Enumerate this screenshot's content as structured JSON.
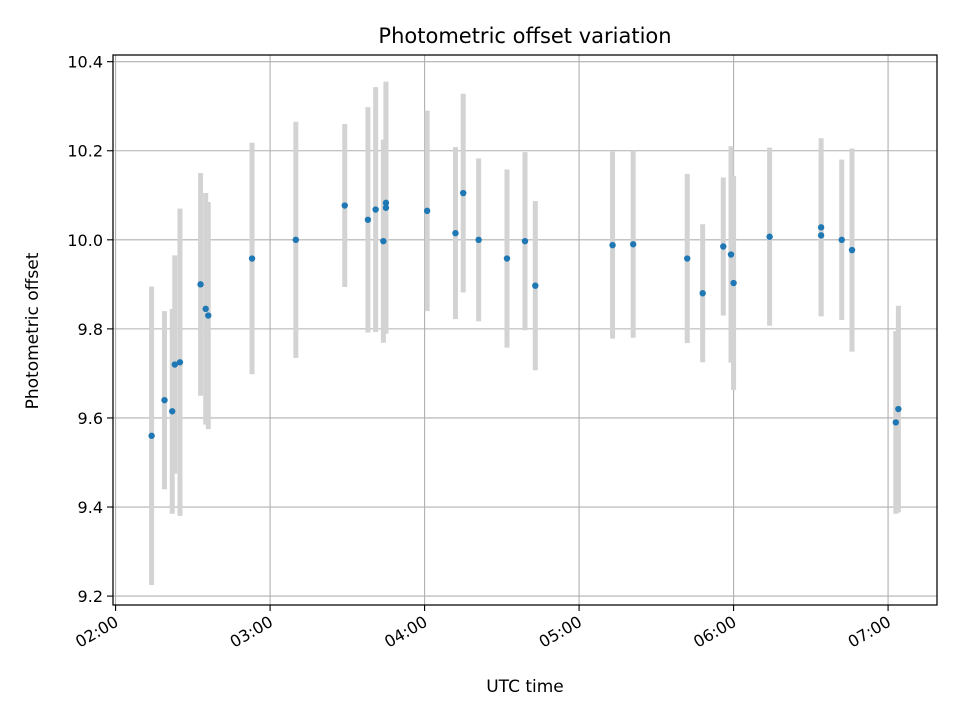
{
  "chart_data": {
    "type": "scatter",
    "title": "Photometric offset variation",
    "xlabel": "UTC time",
    "ylabel": "Photometric offset",
    "xlim": [
      "01:59",
      "07:19"
    ],
    "ylim": [
      9.18,
      10.415
    ],
    "x_ticks": [
      "02:00",
      "03:00",
      "04:00",
      "05:00",
      "06:00",
      "07:00"
    ],
    "y_ticks": [
      9.2,
      9.4,
      9.6,
      9.8,
      10.0,
      10.2,
      10.4
    ],
    "grid": true,
    "colors": {
      "point": "#1f77b4",
      "errorbar": "#d3d3d3",
      "grid": "#b0b0b0"
    },
    "points": [
      {
        "x": "02:14",
        "y": 9.56,
        "err": 0.335
      },
      {
        "x": "02:19",
        "y": 9.64,
        "err": 0.2
      },
      {
        "x": "02:22",
        "y": 9.615,
        "err": 0.23
      },
      {
        "x": "02:23",
        "y": 9.72,
        "err": 0.245
      },
      {
        "x": "02:25",
        "y": 9.725,
        "err": 0.345
      },
      {
        "x": "02:33",
        "y": 9.9,
        "err": 0.25
      },
      {
        "x": "02:35",
        "y": 9.845,
        "err": 0.26
      },
      {
        "x": "02:36",
        "y": 9.83,
        "err": 0.255
      },
      {
        "x": "02:53",
        "y": 9.958,
        "err": 0.26
      },
      {
        "x": "03:10",
        "y": 10.0,
        "err": 0.265
      },
      {
        "x": "03:29",
        "y": 10.077,
        "err": 0.183
      },
      {
        "x": "03:38",
        "y": 10.045,
        "err": 0.253
      },
      {
        "x": "03:41",
        "y": 10.068,
        "err": 0.275
      },
      {
        "x": "03:44",
        "y": 9.997,
        "err": 0.228
      },
      {
        "x": "03:45",
        "y": 10.083,
        "err": 0.272
      },
      {
        "x": "03:45",
        "y": 10.072,
        "err": 0.283
      },
      {
        "x": "04:01",
        "y": 10.065,
        "err": 0.225
      },
      {
        "x": "04:12",
        "y": 10.015,
        "err": 0.193
      },
      {
        "x": "04:15",
        "y": 10.105,
        "err": 0.223
      },
      {
        "x": "04:21",
        "y": 10.0,
        "err": 0.183
      },
      {
        "x": "04:32",
        "y": 9.958,
        "err": 0.2
      },
      {
        "x": "04:39",
        "y": 9.997,
        "err": 0.2
      },
      {
        "x": "04:43",
        "y": 9.897,
        "err": 0.19
      },
      {
        "x": "05:13",
        "y": 9.988,
        "err": 0.21
      },
      {
        "x": "05:21",
        "y": 9.99,
        "err": 0.21
      },
      {
        "x": "05:42",
        "y": 9.958,
        "err": 0.19
      },
      {
        "x": "05:48",
        "y": 9.88,
        "err": 0.155
      },
      {
        "x": "05:56",
        "y": 9.985,
        "err": 0.155
      },
      {
        "x": "05:59",
        "y": 9.967,
        "err": 0.243
      },
      {
        "x": "06:00",
        "y": 9.903,
        "err": 0.24
      },
      {
        "x": "06:14",
        "y": 10.007,
        "err": 0.2
      },
      {
        "x": "06:34",
        "y": 10.028,
        "err": 0.2
      },
      {
        "x": "06:34",
        "y": 10.01,
        "err": 0.18
      },
      {
        "x": "06:42",
        "y": 10.0,
        "err": 0.18
      },
      {
        "x": "06:46",
        "y": 9.977,
        "err": 0.228
      },
      {
        "x": "07:03",
        "y": 9.59,
        "err": 0.205
      },
      {
        "x": "07:04",
        "y": 9.62,
        "err": 0.232
      }
    ]
  }
}
